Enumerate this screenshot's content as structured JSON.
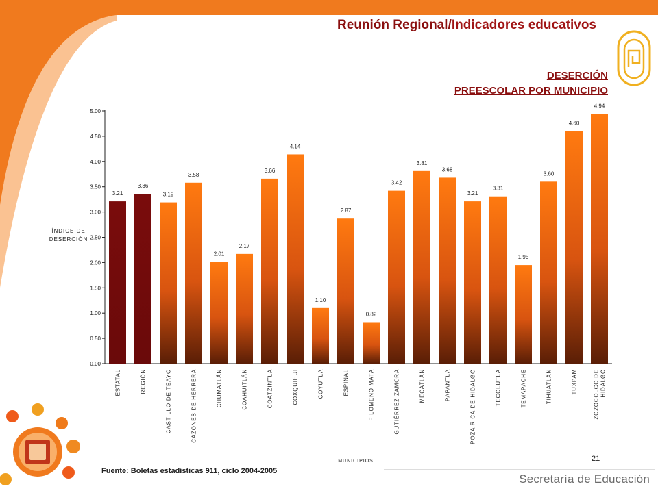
{
  "header": {
    "title_part1": "Reunión Regional",
    "title_sep": "/",
    "title_part2": "Indicadores educativos"
  },
  "subtitle": {
    "line1": "DESERCIÓN",
    "line2": "PREESCOLAR POR MUNICIPIO"
  },
  "footer": {
    "source": "Fuente: Boletas estadísticas 911, ciclo 2004-2005",
    "page_number": "21",
    "brand": "Secretaría de Educación"
  },
  "colors": {
    "accent_orange": "#f07a1e",
    "dark_red": "#7a0c0c",
    "bar_orange_top": "#ff7a10",
    "bar_orange_bottom": "#5a1e06"
  },
  "icons": [
    "logo-icon",
    "seal-icon"
  ],
  "chart_data": {
    "type": "bar",
    "title": "",
    "xlabel": "MUNICIPIOS",
    "ylabel_lines": [
      "ÍNDICE DE",
      "DESERCIÓN"
    ],
    "ylim": [
      0,
      5
    ],
    "yticks": [
      "0.00",
      "0.50",
      "1.00",
      "1.50",
      "2.00",
      "2.50",
      "3.00",
      "3.50",
      "4.00",
      "4.50",
      "5.00"
    ],
    "grid": false,
    "legend": "none",
    "categories": [
      [
        "ESTATAL"
      ],
      [
        "REGIÓN"
      ],
      [
        "CASTILLO DE TEAYO"
      ],
      [
        "CAZONES DE HERRERA"
      ],
      [
        "CHUMATLÁN"
      ],
      [
        "COAHUITLÁN"
      ],
      [
        "COATZINTLA"
      ],
      [
        "COXQUIHUI"
      ],
      [
        "COYUTLA"
      ],
      [
        "ESPINAL"
      ],
      [
        "FILOMENO MATA"
      ],
      [
        "GUTIÉRREZ ZAMORA"
      ],
      [
        "MECATLÁN"
      ],
      [
        "PAPANTLA"
      ],
      [
        "POZA RICA DE HIDALGO"
      ],
      [
        "TECOLUTLA"
      ],
      [
        "TEMAPACHE"
      ],
      [
        "TIHUATLÁN"
      ],
      [
        "TUXPAM"
      ],
      [
        "ZOZOCOLCO DE",
        "HIDALGO"
      ]
    ],
    "values": [
      3.21,
      3.36,
      3.19,
      3.58,
      2.01,
      2.17,
      3.66,
      4.14,
      1.1,
      2.87,
      0.82,
      3.42,
      3.81,
      3.68,
      3.21,
      3.31,
      1.95,
      3.6,
      4.6,
      4.94
    ],
    "value_labels": [
      "3.21",
      "3.36",
      "3.19",
      "3.58",
      "2.01",
      "2.17",
      "3.66",
      "4.14",
      "1.10",
      "2.87",
      "0.82",
      "3.42",
      "3.81",
      "3.68",
      "3.21",
      "3.31",
      "1.95",
      "3.60",
      "4.60",
      "4.94"
    ],
    "highlight_count": 2
  }
}
